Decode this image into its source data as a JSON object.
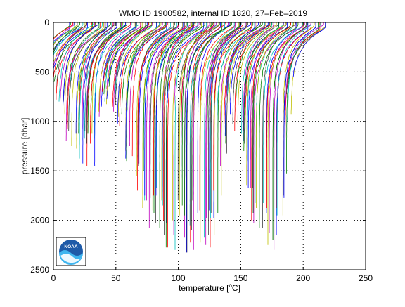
{
  "chart_data": {
    "type": "line",
    "title": "WMO ID 1900582, internal ID 1820, 27–Feb–2019",
    "xlabel_prefix": "temperature [",
    "xlabel_unit_sup": "o",
    "xlabel_suffix": "C]",
    "ylabel": "pressure [dbar]",
    "xlim": [
      0,
      250
    ],
    "ylim": [
      0,
      2500
    ],
    "y_reversed": true,
    "xticks": [
      0,
      50,
      100,
      150,
      200,
      250
    ],
    "yticks": [
      0,
      500,
      1000,
      1500,
      2000,
      2500
    ],
    "xtick_labels": [
      "0",
      "50",
      "100",
      "150",
      "200",
      "250"
    ],
    "ytick_labels": [
      "0",
      "500",
      "1000",
      "1500",
      "2000",
      "2500"
    ],
    "grid": "dotted",
    "note": "waterfall of ~190 profiles, each offset in x",
    "profiles": {
      "count": 190,
      "x_start": 10,
      "x_end": 215,
      "deep_temperature_offset": -25,
      "surface_temperature_offset": 0,
      "max_pressure_range": [
        400,
        2300
      ],
      "colors": [
        "#0000ff",
        "#008000",
        "#ff0000",
        "#00bfbf",
        "#bf00bf",
        "#bfbf00",
        "#404040"
      ]
    },
    "logo": {
      "text": "NOAA",
      "position": "bottom-left"
    }
  }
}
